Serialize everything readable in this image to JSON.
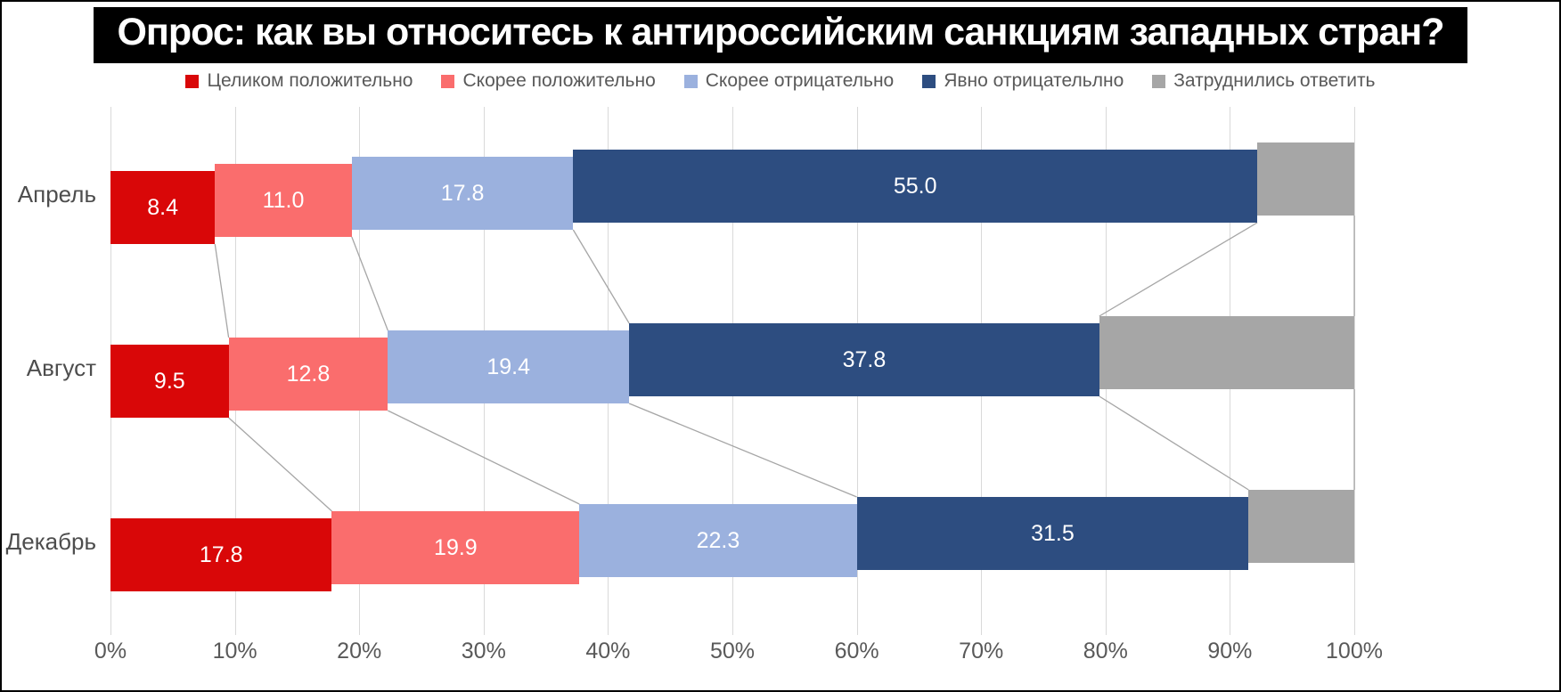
{
  "title": "Опрос: как вы относитесь к антироссийским санкциям западных стран?",
  "chart_data": {
    "type": "bar",
    "variant": "horizontal-stacked-staggered",
    "title": "Опрос: как вы относитесь к антироссийским санкциям западных стран?",
    "categories": [
      "Апрель",
      "Август",
      "Декабрь"
    ],
    "series": [
      {
        "name": "Целиком положительно",
        "color": "#d90708",
        "values": [
          8.4,
          9.5,
          17.8
        ],
        "labels": [
          "8.4",
          "9.5",
          "17.8"
        ]
      },
      {
        "name": "Скорее положительно",
        "color": "#fa6d6d",
        "values": [
          11.0,
          12.8,
          19.9
        ],
        "labels": [
          "11.0",
          "12.8",
          "19.9"
        ]
      },
      {
        "name": "Скорее отрицательно",
        "color": "#9bb1de",
        "values": [
          17.8,
          19.4,
          22.3
        ],
        "labels": [
          "17.8",
          "19.4",
          "22.3"
        ]
      },
      {
        "name": "Явно отрицательлно",
        "color": "#2d4d80",
        "values": [
          55.0,
          37.8,
          31.5
        ],
        "labels": [
          "55.0",
          "37.8",
          "31.5"
        ]
      },
      {
        "name": "Затруднились ответить",
        "color": "#a6a6a6",
        "values": [
          7.8,
          20.5,
          8.5
        ],
        "labels": [
          "",
          "",
          ""
        ]
      }
    ],
    "x_ticks": [
      "0%",
      "10%",
      "20%",
      "30%",
      "40%",
      "50%",
      "60%",
      "70%",
      "80%",
      "90%",
      "100%"
    ],
    "xlim": [
      0,
      100
    ],
    "grid": true,
    "legend_position": "top",
    "gridline_color": "#d9d9d9",
    "connector_color": "#a6a6a6",
    "axis_text_color": "#595959",
    "value_label_color": "#ffffff"
  }
}
